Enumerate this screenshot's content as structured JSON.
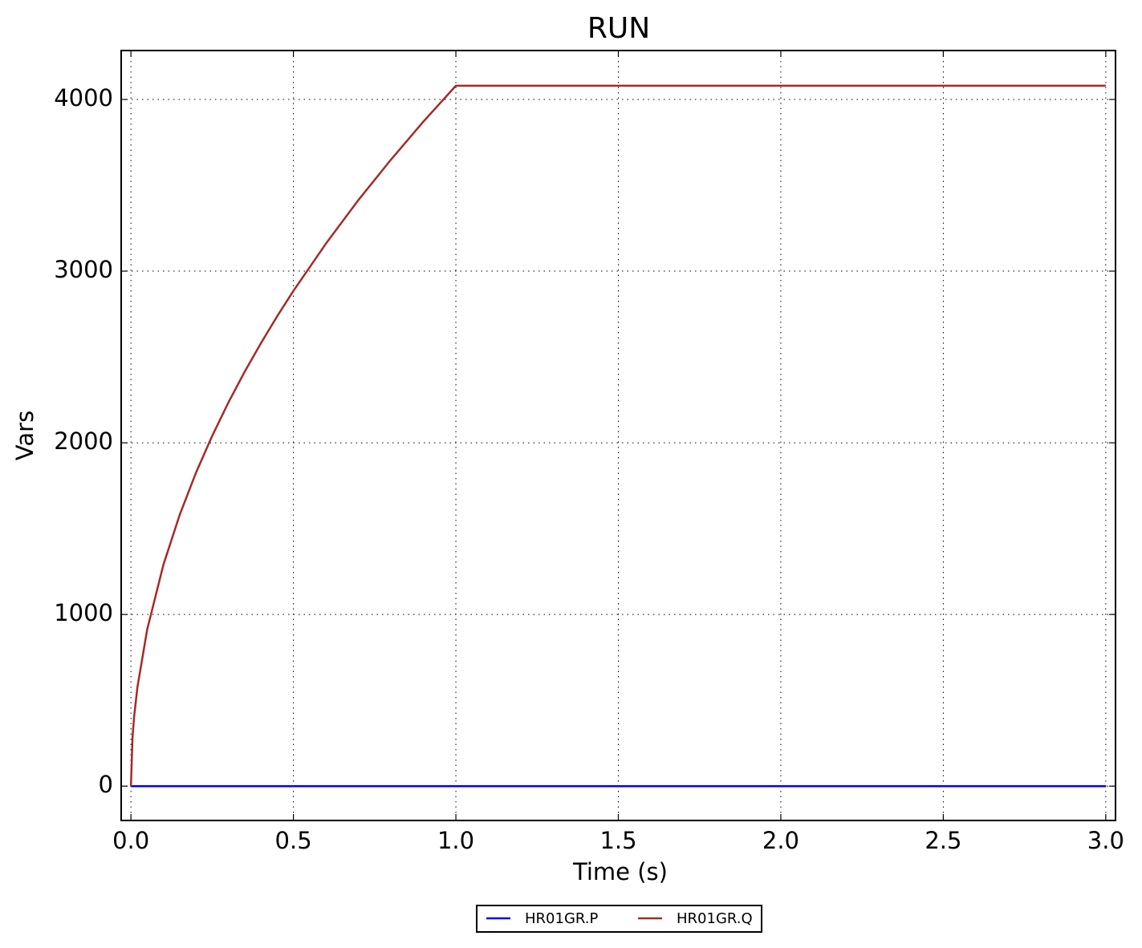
{
  "chart_data": {
    "type": "line",
    "title": "RUN",
    "x_label": "Time (s)",
    "y_label": "Vars",
    "x": [
      0,
      0.005,
      0.01,
      0.02,
      0.05,
      0.1,
      0.15,
      0.2,
      0.25,
      0.3,
      0.35,
      0.4,
      0.45,
      0.5,
      0.6,
      0.7,
      0.8,
      0.9,
      1.0,
      3.0
    ],
    "series": [
      {
        "name": "HR01GR.P",
        "color": "#0000ff",
        "values": [
          0,
          0,
          0,
          0,
          0,
          0,
          0,
          0,
          0,
          0,
          0,
          0,
          0,
          0,
          0,
          0,
          0,
          0,
          0,
          0
        ]
      },
      {
        "name": "HR01GR.Q",
        "color": "#a52a2a",
        "values": [
          0,
          288,
          408,
          577,
          912,
          1290,
          1580,
          1825,
          2040,
          2235,
          2414,
          2580,
          2737,
          2885,
          3160,
          3414,
          3649,
          3871,
          4080,
          4080
        ]
      }
    ],
    "xlim": [
      -0.03,
      3.03
    ],
    "ylim": [
      -200,
      4285
    ],
    "xticks": [
      {
        "value": 0,
        "label": "0.0"
      },
      {
        "value": 0.5,
        "label": "0.5"
      },
      {
        "value": 1,
        "label": "1.0"
      },
      {
        "value": 1.5,
        "label": "1.5"
      },
      {
        "value": 2,
        "label": "2.0"
      },
      {
        "value": 2.5,
        "label": "2.5"
      },
      {
        "value": 3,
        "label": "3.0"
      }
    ],
    "yticks": [
      0,
      1000,
      2000,
      3000,
      4000
    ],
    "grid": true,
    "legend": "bottom"
  }
}
